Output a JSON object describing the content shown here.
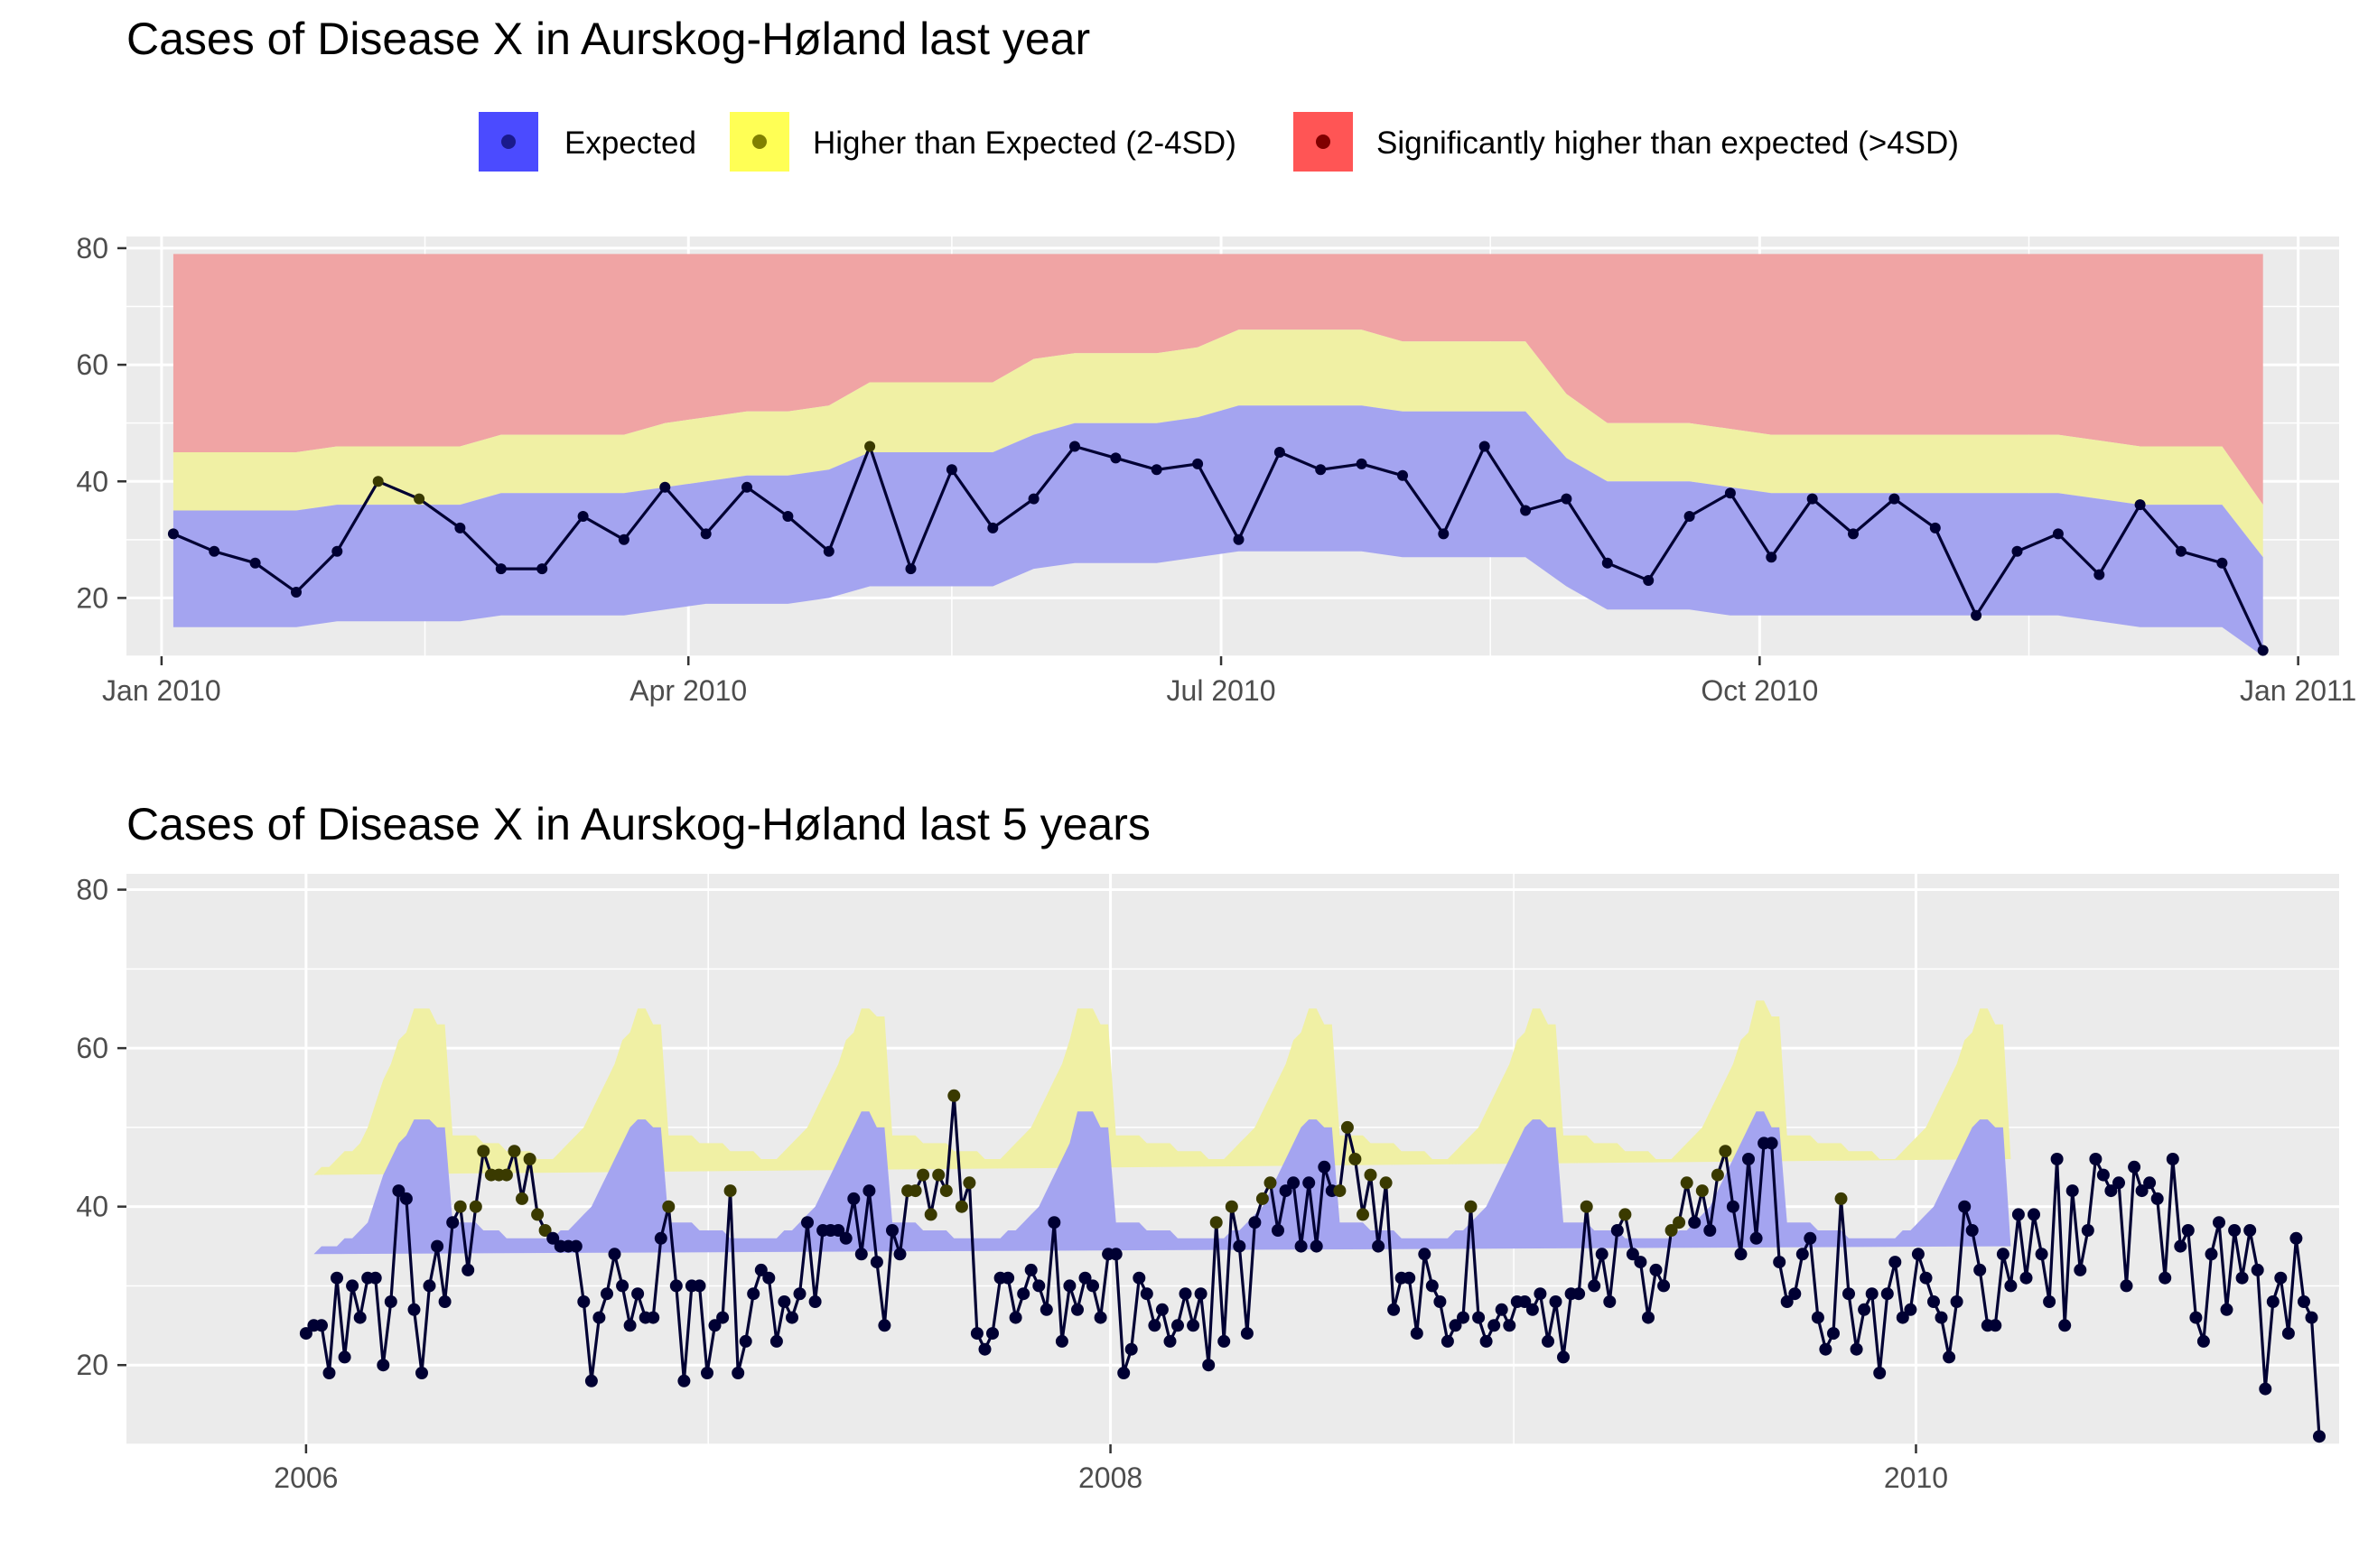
{
  "legend": {
    "items": [
      {
        "label": "Expected",
        "fill": "#4b4bff",
        "point": "#1a1a8c"
      },
      {
        "label": "Higher than Expected (2-4SD)",
        "fill": "#ffff55",
        "point": "#808000"
      },
      {
        "label": "Significantly higher than expected (>4SD)",
        "fill": "#ff5555",
        "point": "#800000"
      }
    ]
  },
  "colors": {
    "panel_bg": "#ebebeb",
    "grid": "#ffffff",
    "band_expected": "#a4a4f0",
    "band_higher": "#f0f0a4",
    "band_significant": "#f0a4a4",
    "line": "#000033",
    "point_normal": "#000033",
    "point_higher": "#3a3a00"
  },
  "chart_data": [
    {
      "type": "area",
      "title": "Cases of Disease X in Aurskog-Høland last year",
      "xlabel": "",
      "ylabel": "",
      "x_unit": "week",
      "x_start": "2010-01-03",
      "x_step_days": 7,
      "xlim": [
        "2009-12-26",
        "2011-01-08"
      ],
      "x_ticks": [
        {
          "date": "2010-01-01",
          "label": "Jan 2010"
        },
        {
          "date": "2010-04-01",
          "label": "Apr 2010"
        },
        {
          "date": "2010-07-01",
          "label": "Jul 2010"
        },
        {
          "date": "2010-10-01",
          "label": "Oct 2010"
        },
        {
          "date": "2011-01-01",
          "label": "Jan 2011"
        }
      ],
      "x_minor_ticks": [
        "2010-02-15",
        "2010-05-16",
        "2010-08-16",
        "2010-11-16"
      ],
      "ylim": [
        10,
        82
      ],
      "y_ticks": [
        20,
        40,
        60,
        80
      ],
      "grid": true,
      "legend_position": "top",
      "series": [
        {
          "name": "Cases",
          "values": [
            31,
            28,
            26,
            21,
            28,
            40,
            37,
            32,
            25,
            25,
            34,
            30,
            39,
            31,
            39,
            34,
            28,
            46,
            25,
            42,
            32,
            37,
            46,
            44,
            42,
            43,
            30,
            45,
            42,
            43,
            41,
            31,
            46,
            35,
            37,
            26,
            23,
            34,
            38,
            27,
            37,
            31,
            37,
            32,
            17,
            28,
            31,
            24,
            36,
            28,
            26,
            11
          ]
        }
      ],
      "bands": {
        "expected_lower": [
          15,
          15,
          15,
          15,
          16,
          16,
          16,
          16,
          17,
          17,
          17,
          17,
          18,
          19,
          19,
          19,
          20,
          22,
          22,
          22,
          22,
          25,
          26,
          26,
          26,
          27,
          28,
          28,
          28,
          28,
          27,
          27,
          27,
          27,
          22,
          18,
          18,
          18,
          17,
          17,
          17,
          17,
          17,
          17,
          17,
          17,
          17,
          16,
          15,
          15,
          15,
          10
        ],
        "expected_upper": [
          35,
          35,
          35,
          35,
          36,
          36,
          36,
          36,
          38,
          38,
          38,
          38,
          39,
          40,
          41,
          41,
          42,
          45,
          45,
          45,
          45,
          48,
          50,
          50,
          50,
          51,
          53,
          53,
          53,
          53,
          52,
          52,
          52,
          52,
          44,
          40,
          40,
          40,
          39,
          38,
          38,
          38,
          38,
          38,
          38,
          38,
          38,
          37,
          36,
          36,
          36,
          27
        ],
        "higher_upper": [
          45,
          45,
          45,
          45,
          46,
          46,
          46,
          46,
          48,
          48,
          48,
          48,
          50,
          51,
          52,
          52,
          53,
          57,
          57,
          57,
          57,
          61,
          62,
          62,
          62,
          63,
          66,
          66,
          66,
          66,
          64,
          64,
          64,
          64,
          55,
          50,
          50,
          50,
          49,
          48,
          48,
          48,
          48,
          48,
          48,
          48,
          48,
          47,
          46,
          46,
          46,
          36
        ],
        "significant_upper": 79
      }
    },
    {
      "type": "area",
      "title": "Cases of Disease X in Aurskog-Høland last 5 years",
      "xlabel": "",
      "ylabel": "",
      "x_unit": "week",
      "x_start": "2006-01-01",
      "x_step_days": 7,
      "xlim": [
        "2005-07-22",
        "2011-01-20"
      ],
      "x_ticks": [
        {
          "date": "2006-01-01",
          "label": "2006"
        },
        {
          "date": "2008-01-01",
          "label": "2008"
        },
        {
          "date": "2010-01-01",
          "label": "2010"
        }
      ],
      "x_minor_ticks": [
        "2007-01-01",
        "2009-01-01"
      ],
      "ylim": [
        10,
        82
      ],
      "y_ticks": [
        20,
        40,
        60,
        80
      ],
      "grid": true,
      "legend_position": "top",
      "series": [
        {
          "name": "Cases",
          "values": [
            24,
            25,
            25,
            19,
            31,
            21,
            30,
            26,
            31,
            31,
            20,
            28,
            42,
            41,
            27,
            19,
            30,
            35,
            28,
            38,
            40,
            32,
            40,
            47,
            44,
            44,
            44,
            47,
            41,
            46,
            39,
            37,
            36,
            35,
            35,
            35,
            28,
            18,
            26,
            29,
            34,
            30,
            25,
            29,
            26,
            26,
            36,
            40,
            30,
            18,
            30,
            30,
            19,
            25,
            26,
            42,
            19,
            23,
            29,
            32,
            31,
            23,
            28,
            26,
            29,
            38,
            28,
            37,
            37,
            37,
            36,
            41,
            34,
            42,
            33,
            25,
            37,
            34,
            42,
            42,
            44,
            39,
            44,
            42,
            54,
            40,
            43,
            24,
            22,
            24,
            31,
            31,
            26,
            29,
            32,
            30,
            27,
            38,
            23,
            30,
            27,
            31,
            30,
            26,
            34,
            34,
            19,
            22,
            31,
            29,
            25,
            27,
            23,
            25,
            29,
            25,
            29,
            20,
            38,
            23,
            40,
            35,
            24,
            38,
            41,
            43,
            37,
            42,
            43,
            35,
            43,
            35,
            45,
            42,
            42,
            50,
            46,
            39,
            44,
            35,
            43,
            27,
            31,
            31,
            24,
            34,
            30,
            28,
            23,
            25,
            26,
            40,
            26,
            23,
            25,
            27,
            25,
            28,
            28,
            27,
            29,
            23,
            28,
            21,
            29,
            29,
            40,
            30,
            34,
            28,
            37,
            39,
            34,
            33,
            26,
            32,
            30,
            37,
            38,
            43,
            38,
            42,
            37,
            44,
            47,
            40,
            34,
            46,
            36,
            48,
            48,
            33,
            28,
            29,
            34,
            36,
            26,
            22,
            24,
            41,
            29,
            22,
            27,
            29,
            19,
            29,
            33,
            26,
            27,
            34,
            31,
            28,
            26,
            21,
            28,
            40,
            37,
            32,
            25,
            25,
            34,
            30,
            39,
            31,
            39,
            34,
            28,
            46,
            25,
            42,
            32,
            37,
            46,
            44,
            42,
            43,
            30,
            45,
            42,
            43,
            41,
            31,
            46,
            35,
            37,
            26,
            23,
            34,
            38,
            27,
            37,
            31,
            37,
            32,
            17,
            28,
            31,
            24,
            36,
            28,
            26,
            11
          ]
        }
      ],
      "bands": {
        "expected_lower": [
          14,
          14,
          15,
          15,
          15,
          16,
          16,
          16,
          17,
          19,
          20,
          22,
          24,
          25,
          27,
          27,
          27,
          26,
          26,
          17,
          17,
          17,
          17,
          16,
          16,
          16,
          15,
          15,
          15,
          15,
          15,
          15,
          15,
          16,
          16,
          16,
          17,
          18,
          20,
          22,
          24,
          25,
          27,
          27,
          27,
          26,
          26,
          17,
          17,
          17,
          17,
          16,
          16,
          16,
          16,
          15,
          15,
          15,
          15,
          15,
          15,
          15,
          16,
          16,
          16,
          17,
          18,
          20,
          22,
          24,
          25,
          27,
          28,
          28,
          26,
          26,
          17,
          17,
          17,
          17,
          16,
          16,
          16,
          16,
          15,
          15,
          15,
          15,
          15,
          15,
          15,
          16,
          16,
          16,
          17,
          18,
          20,
          22,
          24,
          25,
          28,
          28,
          28,
          26,
          26,
          17,
          17,
          17,
          17,
          16,
          16,
          16,
          16,
          15,
          15,
          15,
          15,
          15,
          15,
          15,
          16,
          16,
          16,
          17,
          18,
          20,
          22,
          24,
          25,
          27,
          27,
          27,
          26,
          26,
          17,
          17,
          17,
          17,
          16,
          16,
          16,
          16,
          15,
          15,
          15,
          15,
          15,
          15,
          15,
          16,
          16,
          16,
          17,
          18,
          20,
          22,
          24,
          25,
          27,
          27,
          27,
          26,
          26,
          17,
          17,
          17,
          17,
          16,
          16,
          16,
          16,
          15,
          15,
          15,
          15,
          15,
          15,
          15,
          16,
          16,
          16,
          17,
          18,
          20,
          22,
          24,
          25,
          27,
          28,
          28,
          26,
          26,
          17,
          17,
          17,
          17,
          16,
          16,
          16,
          16,
          15,
          15,
          15,
          15,
          15,
          15,
          15,
          16,
          16,
          16,
          17,
          18,
          20,
          22,
          24,
          25,
          27,
          27,
          27,
          26,
          26,
          16
        ],
        "expected_upper": [
          34,
          34,
          35,
          35,
          35,
          36,
          36,
          37,
          38,
          41,
          44,
          46,
          48,
          49,
          51,
          51,
          51,
          50,
          50,
          38,
          38,
          38,
          38,
          37,
          37,
          37,
          36,
          36,
          36,
          36,
          36,
          36,
          36,
          37,
          37,
          38,
          39,
          40,
          42,
          44,
          46,
          48,
          50,
          51,
          51,
          50,
          50,
          38,
          38,
          38,
          38,
          37,
          37,
          37,
          37,
          36,
          36,
          36,
          36,
          36,
          36,
          36,
          37,
          37,
          38,
          39,
          40,
          42,
          44,
          46,
          48,
          50,
          52,
          52,
          50,
          50,
          38,
          38,
          38,
          38,
          37,
          37,
          37,
          37,
          36,
          36,
          36,
          36,
          36,
          36,
          36,
          37,
          37,
          38,
          39,
          40,
          42,
          44,
          46,
          48,
          52,
          52,
          52,
          50,
          50,
          38,
          38,
          38,
          38,
          37,
          37,
          37,
          37,
          36,
          36,
          36,
          36,
          36,
          36,
          36,
          37,
          37,
          38,
          39,
          40,
          42,
          44,
          46,
          48,
          50,
          51,
          51,
          50,
          50,
          38,
          38,
          38,
          38,
          37,
          37,
          37,
          37,
          36,
          36,
          36,
          36,
          36,
          36,
          36,
          37,
          37,
          38,
          39,
          40,
          42,
          44,
          46,
          48,
          50,
          51,
          51,
          50,
          50,
          38,
          38,
          38,
          38,
          37,
          37,
          37,
          37,
          36,
          36,
          36,
          36,
          36,
          36,
          36,
          37,
          37,
          38,
          39,
          40,
          42,
          44,
          46,
          48,
          50,
          52,
          52,
          50,
          50,
          38,
          38,
          38,
          38,
          37,
          37,
          37,
          37,
          36,
          36,
          36,
          36,
          36,
          36,
          36,
          37,
          37,
          38,
          39,
          40,
          42,
          44,
          46,
          48,
          50,
          51,
          51,
          50,
          50,
          35
        ],
        "higher_upper": [
          44,
          44,
          45,
          45,
          46,
          47,
          47,
          48,
          50,
          53,
          56,
          58,
          61,
          62,
          65,
          65,
          65,
          63,
          63,
          49,
          49,
          49,
          49,
          48,
          48,
          48,
          47,
          47,
          47,
          47,
          46,
          46,
          46,
          47,
          48,
          49,
          50,
          52,
          54,
          56,
          58,
          61,
          62,
          65,
          65,
          63,
          63,
          49,
          49,
          49,
          49,
          48,
          48,
          48,
          48,
          47,
          47,
          47,
          47,
          46,
          46,
          46,
          47,
          48,
          49,
          50,
          52,
          54,
          56,
          58,
          61,
          62,
          65,
          65,
          64,
          64,
          49,
          49,
          49,
          49,
          48,
          48,
          48,
          48,
          47,
          47,
          47,
          47,
          46,
          46,
          46,
          47,
          48,
          49,
          50,
          52,
          54,
          56,
          58,
          61,
          65,
          65,
          65,
          63,
          63,
          49,
          49,
          49,
          49,
          48,
          48,
          48,
          48,
          47,
          47,
          47,
          47,
          46,
          46,
          46,
          47,
          48,
          49,
          50,
          52,
          54,
          56,
          58,
          61,
          62,
          65,
          65,
          63,
          63,
          49,
          49,
          49,
          49,
          48,
          48,
          48,
          48,
          47,
          47,
          47,
          47,
          46,
          46,
          46,
          47,
          48,
          49,
          50,
          52,
          54,
          56,
          58,
          61,
          62,
          65,
          65,
          63,
          63,
          49,
          49,
          49,
          49,
          48,
          48,
          48,
          48,
          47,
          47,
          47,
          47,
          46,
          46,
          46,
          47,
          48,
          49,
          50,
          52,
          54,
          56,
          58,
          61,
          62,
          66,
          66,
          64,
          64,
          49,
          49,
          49,
          49,
          48,
          48,
          48,
          48,
          47,
          47,
          47,
          47,
          46,
          46,
          46,
          47,
          48,
          49,
          50,
          52,
          54,
          56,
          58,
          61,
          62,
          65,
          65,
          63,
          63,
          46
        ],
        "significant_upper": 79
      }
    }
  ]
}
